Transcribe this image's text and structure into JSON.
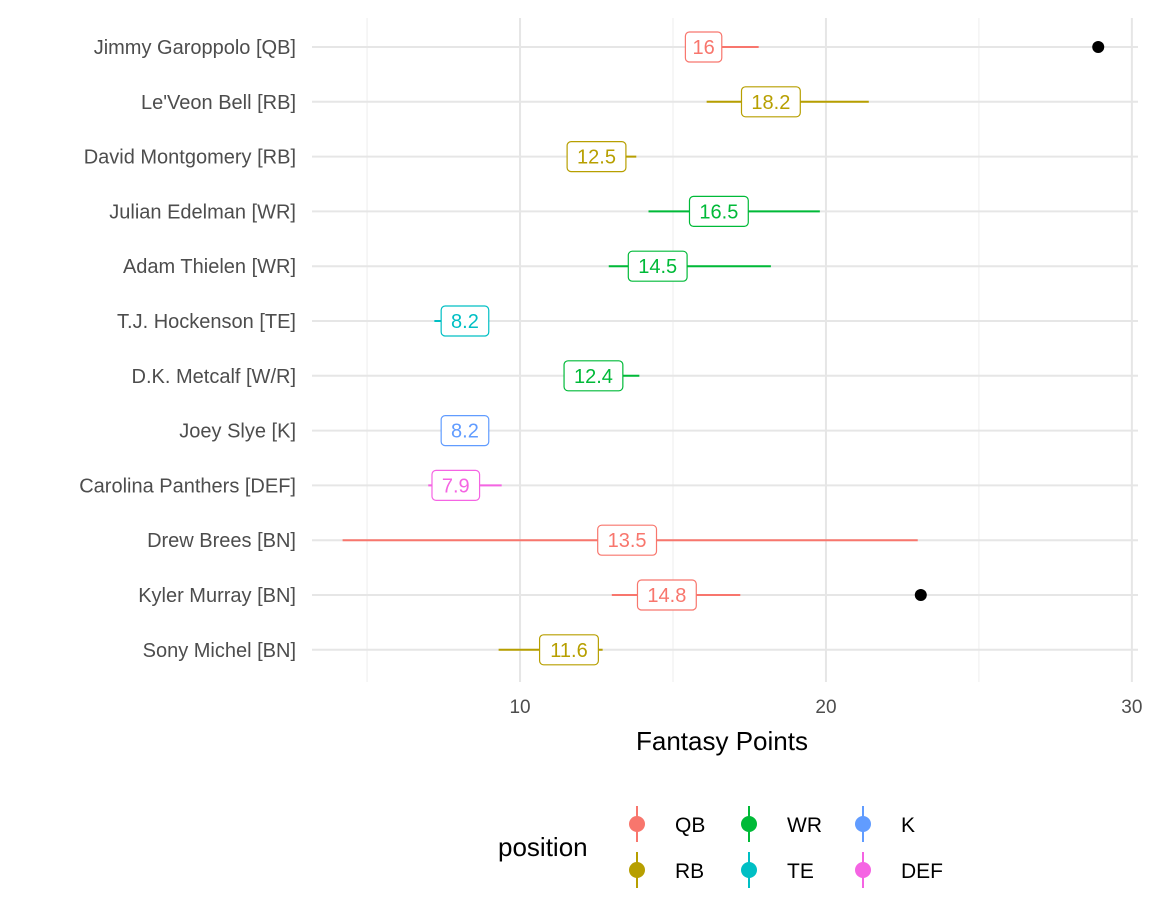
{
  "chart_data": {
    "type": "range-dot",
    "xlabel": "Fantasy Points",
    "xlim": [
      3.2,
      30.2
    ],
    "xticks": [
      10,
      20,
      30
    ],
    "grid": true,
    "legend_title": "position",
    "legend_position": "bottom",
    "legend": [
      {
        "label": "QB",
        "color": "#F8766D"
      },
      {
        "label": "WR",
        "color": "#00BA38"
      },
      {
        "label": "K",
        "color": "#619CFF"
      },
      {
        "label": "RB",
        "color": "#B79F00"
      },
      {
        "label": "TE",
        "color": "#00BFC4"
      },
      {
        "label": "DEF",
        "color": "#F564E3"
      }
    ],
    "players": [
      {
        "name": "Jimmy Garoppolo [QB]",
        "position": "QB",
        "projection": 16,
        "label": "16",
        "low": 15.4,
        "high": 17.8,
        "actual": 28.9
      },
      {
        "name": "Le'Veon Bell [RB]",
        "position": "RB",
        "projection": 18.2,
        "label": "18.2",
        "low": 16.1,
        "high": 21.4,
        "actual": null
      },
      {
        "name": "David Montgomery [RB]",
        "position": "RB",
        "projection": 12.5,
        "label": "12.5",
        "low": 11.6,
        "high": 13.8,
        "actual": null
      },
      {
        "name": "Julian Edelman [WR]",
        "position": "WR",
        "projection": 16.5,
        "label": "16.5",
        "low": 14.2,
        "high": 19.8,
        "actual": null
      },
      {
        "name": "Adam Thielen [WR]",
        "position": "WR",
        "projection": 14.5,
        "label": "14.5",
        "low": 12.9,
        "high": 18.2,
        "actual": null
      },
      {
        "name": "T.J. Hockenson [TE]",
        "position": "TE",
        "projection": 8.2,
        "label": "8.2",
        "low": 7.2,
        "high": 8.5,
        "actual": null
      },
      {
        "name": "D.K. Metcalf [W/R]",
        "position": "WR",
        "projection": 12.4,
        "label": "12.4",
        "low": 11.5,
        "high": 13.9,
        "actual": null
      },
      {
        "name": "Joey Slye [K]",
        "position": "K",
        "projection": 8.2,
        "label": "8.2",
        "low": 7.6,
        "high": 8.6,
        "actual": null
      },
      {
        "name": "Carolina Panthers [DEF]",
        "position": "DEF",
        "projection": 7.9,
        "label": "7.9",
        "low": 7.0,
        "high": 9.4,
        "actual": null
      },
      {
        "name": "Drew Brees [BN]",
        "position": "QB",
        "projection": 13.5,
        "label": "13.5",
        "low": 4.2,
        "high": 23.0,
        "actual": null
      },
      {
        "name": "Kyler Murray [BN]",
        "position": "QB",
        "projection": 14.8,
        "label": "14.8",
        "low": 13.0,
        "high": 17.2,
        "actual": 23.1
      },
      {
        "name": "Sony Michel [BN]",
        "position": "RB",
        "projection": 11.6,
        "label": "11.6",
        "low": 9.3,
        "high": 12.7,
        "actual": null
      }
    ]
  }
}
